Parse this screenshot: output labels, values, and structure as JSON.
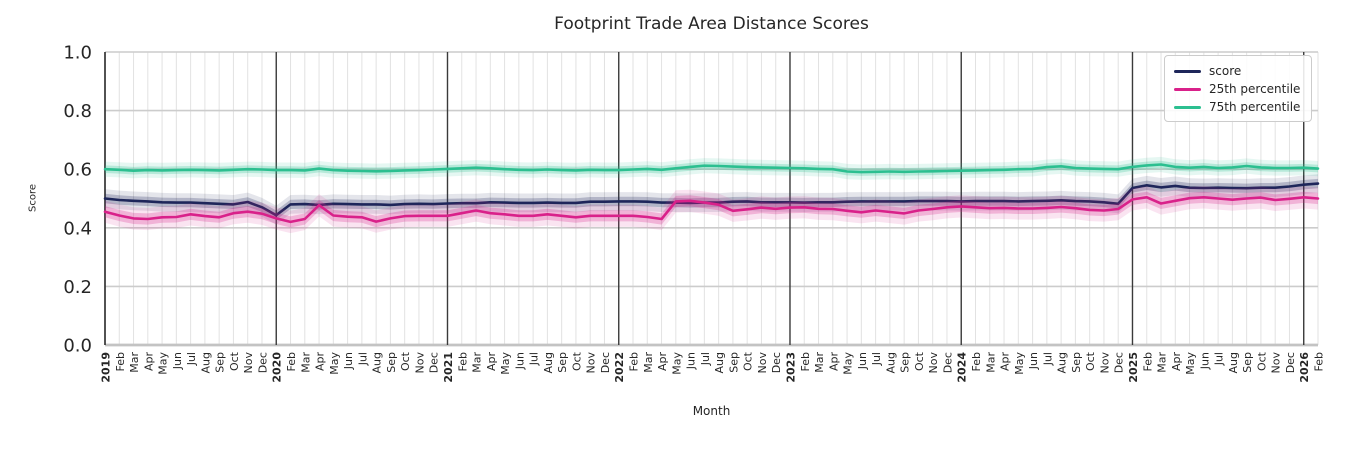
{
  "chart_data": {
    "type": "line",
    "title": "Footprint Trade Area Distance Scores",
    "xlabel": "Month",
    "ylabel": "Score",
    "ylim": [
      0.0,
      1.0
    ],
    "yticks": [
      "0.0",
      "0.2",
      "0.4",
      "0.6",
      "0.8",
      "1.0"
    ],
    "grid": true,
    "legend_position": "upper right",
    "x_labels": [
      "2019",
      "Feb",
      "Mar",
      "Apr",
      "May",
      "Jun",
      "Jul",
      "Aug",
      "Sep",
      "Oct",
      "Nov",
      "Dec",
      "2020",
      "Feb",
      "Mar",
      "Apr",
      "May",
      "Jun",
      "Jul",
      "Aug",
      "Sep",
      "Oct",
      "Nov",
      "Dec",
      "2021",
      "Feb",
      "Mar",
      "Apr",
      "May",
      "Jun",
      "Jul",
      "Aug",
      "Sep",
      "Oct",
      "Nov",
      "Dec",
      "2022",
      "Feb",
      "Mar",
      "Apr",
      "May",
      "Jun",
      "Jul",
      "Aug",
      "Sep",
      "Oct",
      "Nov",
      "Dec",
      "2023",
      "Feb",
      "Mar",
      "Apr",
      "May",
      "Jun",
      "Jul",
      "Aug",
      "Sep",
      "Oct",
      "Nov",
      "Dec",
      "2024",
      "Feb",
      "Mar",
      "Apr",
      "May",
      "Jun",
      "Jul",
      "Aug",
      "Sep",
      "Oct",
      "Nov",
      "Dec",
      "2025",
      "Feb",
      "Mar",
      "Apr",
      "May",
      "Jun",
      "Jul",
      "Aug",
      "Sep",
      "Oct",
      "Nov",
      "Dec",
      "2026",
      "Feb"
    ],
    "year_line_indices": [
      0,
      12,
      24,
      36,
      48,
      60,
      72,
      84
    ],
    "series": [
      {
        "name": "score",
        "color": "#1e265a",
        "band": 0.016,
        "values": [
          0.5,
          0.495,
          0.492,
          0.49,
          0.487,
          0.486,
          0.486,
          0.484,
          0.482,
          0.48,
          0.488,
          0.47,
          0.443,
          0.48,
          0.481,
          0.478,
          0.482,
          0.481,
          0.48,
          0.48,
          0.478,
          0.481,
          0.482,
          0.481,
          0.483,
          0.484,
          0.484,
          0.487,
          0.486,
          0.485,
          0.485,
          0.486,
          0.485,
          0.485,
          0.489,
          0.489,
          0.49,
          0.49,
          0.489,
          0.486,
          0.486,
          0.485,
          0.486,
          0.486,
          0.489,
          0.49,
          0.487,
          0.487,
          0.487,
          0.486,
          0.487,
          0.487,
          0.489,
          0.49,
          0.49,
          0.49,
          0.49,
          0.491,
          0.491,
          0.491,
          0.49,
          0.491,
          0.491,
          0.491,
          0.49,
          0.491,
          0.492,
          0.494,
          0.491,
          0.49,
          0.487,
          0.482,
          0.536,
          0.545,
          0.538,
          0.543,
          0.537,
          0.536,
          0.537,
          0.536,
          0.535,
          0.537,
          0.537,
          0.541,
          0.547,
          0.551
        ]
      },
      {
        "name": "25th percentile",
        "color": "#d9218a",
        "band": 0.019,
        "values": [
          0.455,
          0.442,
          0.432,
          0.43,
          0.436,
          0.437,
          0.446,
          0.44,
          0.436,
          0.45,
          0.455,
          0.448,
          0.432,
          0.42,
          0.43,
          0.477,
          0.442,
          0.438,
          0.436,
          0.421,
          0.432,
          0.44,
          0.441,
          0.441,
          0.441,
          0.45,
          0.459,
          0.45,
          0.446,
          0.441,
          0.441,
          0.446,
          0.441,
          0.436,
          0.441,
          0.441,
          0.441,
          0.441,
          0.437,
          0.43,
          0.49,
          0.492,
          0.486,
          0.479,
          0.458,
          0.463,
          0.469,
          0.465,
          0.469,
          0.47,
          0.465,
          0.464,
          0.458,
          0.453,
          0.459,
          0.454,
          0.449,
          0.459,
          0.464,
          0.47,
          0.473,
          0.47,
          0.467,
          0.468,
          0.466,
          0.466,
          0.468,
          0.471,
          0.467,
          0.461,
          0.459,
          0.464,
          0.497,
          0.504,
          0.483,
          0.492,
          0.501,
          0.504,
          0.5,
          0.496,
          0.5,
          0.503,
          0.495,
          0.499,
          0.504,
          0.5
        ]
      },
      {
        "name": "75th percentile",
        "color": "#2cbf90",
        "band": 0.013,
        "values": [
          0.6,
          0.598,
          0.595,
          0.597,
          0.596,
          0.597,
          0.598,
          0.597,
          0.596,
          0.598,
          0.6,
          0.599,
          0.597,
          0.597,
          0.596,
          0.602,
          0.597,
          0.595,
          0.594,
          0.593,
          0.594,
          0.596,
          0.597,
          0.599,
          0.601,
          0.603,
          0.605,
          0.603,
          0.6,
          0.598,
          0.597,
          0.599,
          0.597,
          0.596,
          0.598,
          0.597,
          0.597,
          0.599,
          0.601,
          0.598,
          0.603,
          0.608,
          0.612,
          0.611,
          0.609,
          0.607,
          0.606,
          0.605,
          0.604,
          0.603,
          0.601,
          0.6,
          0.592,
          0.59,
          0.591,
          0.592,
          0.591,
          0.592,
          0.593,
          0.594,
          0.595,
          0.596,
          0.597,
          0.598,
          0.6,
          0.601,
          0.607,
          0.61,
          0.604,
          0.602,
          0.601,
          0.6,
          0.608,
          0.613,
          0.616,
          0.608,
          0.605,
          0.608,
          0.604,
          0.606,
          0.611,
          0.606,
          0.604,
          0.604,
          0.605,
          0.602
        ]
      }
    ],
    "colors": {
      "grid_minor": "#e2e2e2",
      "grid_major": "#cccccc",
      "grid_zero": "#c3c3c3",
      "year_line": "#3a3a3a",
      "spine": "#2b2b2b",
      "text": "#262626"
    }
  }
}
